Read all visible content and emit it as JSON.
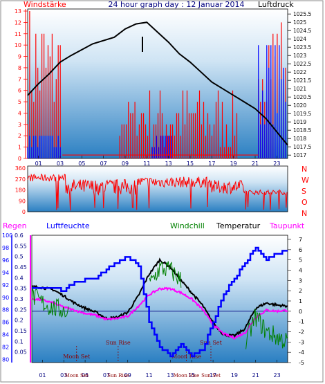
{
  "chart_data": [
    {
      "type": "line",
      "title": "24 hour graph day : 12 Januar 2014",
      "left_label": "Windstärke",
      "right_label": "Luftdruck",
      "x_ticks": [
        "01",
        "03",
        "05",
        "07",
        "09",
        "11",
        "13",
        "15",
        "17",
        "19",
        "21",
        "23"
      ],
      "left_axis": {
        "ticks": [
          0,
          1,
          2,
          3,
          4,
          5,
          6,
          7,
          8,
          9,
          10,
          11,
          12,
          13
        ],
        "range": [
          0,
          13
        ]
      },
      "right_axis": {
        "ticks": [
          1017,
          1017.5,
          1018,
          1018.5,
          1019,
          1019.5,
          1020,
          1020.5,
          1021,
          1021.5,
          1022,
          1022.5,
          1023,
          1023.5,
          1024,
          1024.5,
          1025,
          1025.5
        ],
        "range": [
          1016.8,
          1025.8
        ]
      },
      "series": [
        {
          "name": "Luftdruck",
          "color": "#000000",
          "x": [
            0,
            1,
            2,
            3,
            4,
            6,
            8,
            9,
            10,
            11,
            12,
            13,
            14,
            15,
            16,
            17,
            18,
            19,
            20,
            21,
            22,
            23,
            24
          ],
          "y": [
            1020.6,
            1021.3,
            1021.9,
            1022.6,
            1023.0,
            1023.7,
            1024.1,
            1024.6,
            1024.9,
            1025.0,
            1024.4,
            1023.8,
            1023.1,
            1022.6,
            1022.0,
            1021.4,
            1021.0,
            1020.6,
            1020.2,
            1019.8,
            1019.2,
            1018.4,
            1017.6
          ]
        }
      ]
    },
    {
      "type": "line",
      "left_axis": {
        "ticks": [
          0,
          90,
          180,
          270,
          360
        ],
        "range": [
          0,
          360
        ]
      },
      "right_labels": [
        "N",
        "W",
        "S",
        "O",
        "N"
      ]
    },
    {
      "type": "line",
      "labels": {
        "regen": "Regen",
        "luftfeuchte": "Luftfeuchte",
        "windchill": "Windchill",
        "temperatur": "Temperatur",
        "taupunkt": "Taupunkt"
      },
      "regen_axis": {
        "ticks": [
          0.05,
          0.1,
          0.15,
          0.2,
          0.25,
          0.3,
          0.35,
          0.4,
          0.45,
          0.5,
          0.55,
          0.6
        ],
        "range": [
          0,
          0.6
        ]
      },
      "humidity_axis": {
        "ticks": [
          80,
          82,
          84,
          86,
          88,
          90,
          92,
          94,
          96,
          98,
          100
        ],
        "range": [
          79.5,
          100
        ]
      },
      "temp_axis": {
        "ticks": [
          -5,
          -4,
          -3,
          -2,
          -1,
          0,
          1,
          2,
          3,
          4,
          5,
          6,
          7
        ],
        "range": [
          -5,
          7
        ]
      },
      "x_ticks": [
        "01",
        "03",
        "05",
        "07",
        "09",
        "11",
        "13",
        "15",
        "17",
        "19",
        "21",
        "23"
      ],
      "events": [
        {
          "label": "Moon Set",
          "x": 4.2
        },
        {
          "label": "Sun Rise",
          "x": 8.1
        },
        {
          "label": "Moon Rise",
          "x": 14.5
        },
        {
          "label": "Sun Set",
          "x": 16.8
        }
      ],
      "series": [
        {
          "name": "Temperatur",
          "color": "#000000",
          "x": [
            0,
            1,
            2,
            3,
            4,
            5,
            6,
            7,
            8,
            9,
            10,
            11,
            12,
            13,
            14,
            15,
            16,
            17,
            18,
            19,
            20,
            21,
            22,
            23,
            24
          ],
          "y": [
            2.4,
            2.3,
            2.1,
            1.5,
            0.8,
            0.3,
            -0.1,
            -0.7,
            -0.6,
            -0.1,
            1.5,
            3.6,
            5.0,
            4.3,
            3.0,
            1.8,
            0.6,
            -1.1,
            -2.3,
            -2.4,
            -1.7,
            0.3,
            0.8,
            0.6,
            0.5
          ]
        },
        {
          "name": "Taupunkt",
          "color": "#ff00ff",
          "x": [
            0,
            1,
            2,
            3,
            4,
            5,
            6,
            7,
            8,
            9,
            10,
            11,
            12,
            13,
            14,
            15,
            16,
            17,
            18,
            19,
            20,
            21,
            22,
            23,
            24
          ],
          "y": [
            1.2,
            1.1,
            0.8,
            0.4,
            0.1,
            -0.2,
            -0.4,
            -0.8,
            -0.7,
            -0.5,
            0.5,
            1.6,
            2.2,
            2.2,
            1.8,
            1.2,
            0.2,
            -1.3,
            -2.2,
            -2.6,
            -2.1,
            -0.6,
            0.1,
            0.0,
            0.1
          ]
        },
        {
          "name": "Windchill",
          "color": "#008000",
          "x": [
            0,
            1,
            2,
            3,
            3.5,
            11,
            12,
            13,
            14,
            20,
            21,
            22,
            23,
            24
          ],
          "y": [
            1.5,
            0.8,
            0.3,
            0.1,
            -0.2,
            2.5,
            4.2,
            4.0,
            3.0,
            -3.2,
            -0.5,
            -2.0,
            -2.5,
            -3.0
          ]
        },
        {
          "name": "Luftfeuchte",
          "color": "#0000ff",
          "x": [
            0,
            2,
            3,
            4,
            6,
            7,
            8,
            9,
            10,
            11,
            12,
            13,
            14,
            15,
            16,
            17,
            18,
            19,
            20,
            21,
            22,
            23,
            24
          ],
          "y": [
            91.5,
            91.5,
            91.0,
            92.5,
            93.0,
            94.5,
            95.5,
            96.5,
            95.0,
            86.0,
            82.0,
            80.5,
            82.5,
            80.5,
            81.5,
            86.0,
            90.5,
            93.0,
            95.5,
            98.0,
            96.0,
            97.0,
            97.5
          ]
        }
      ]
    }
  ]
}
